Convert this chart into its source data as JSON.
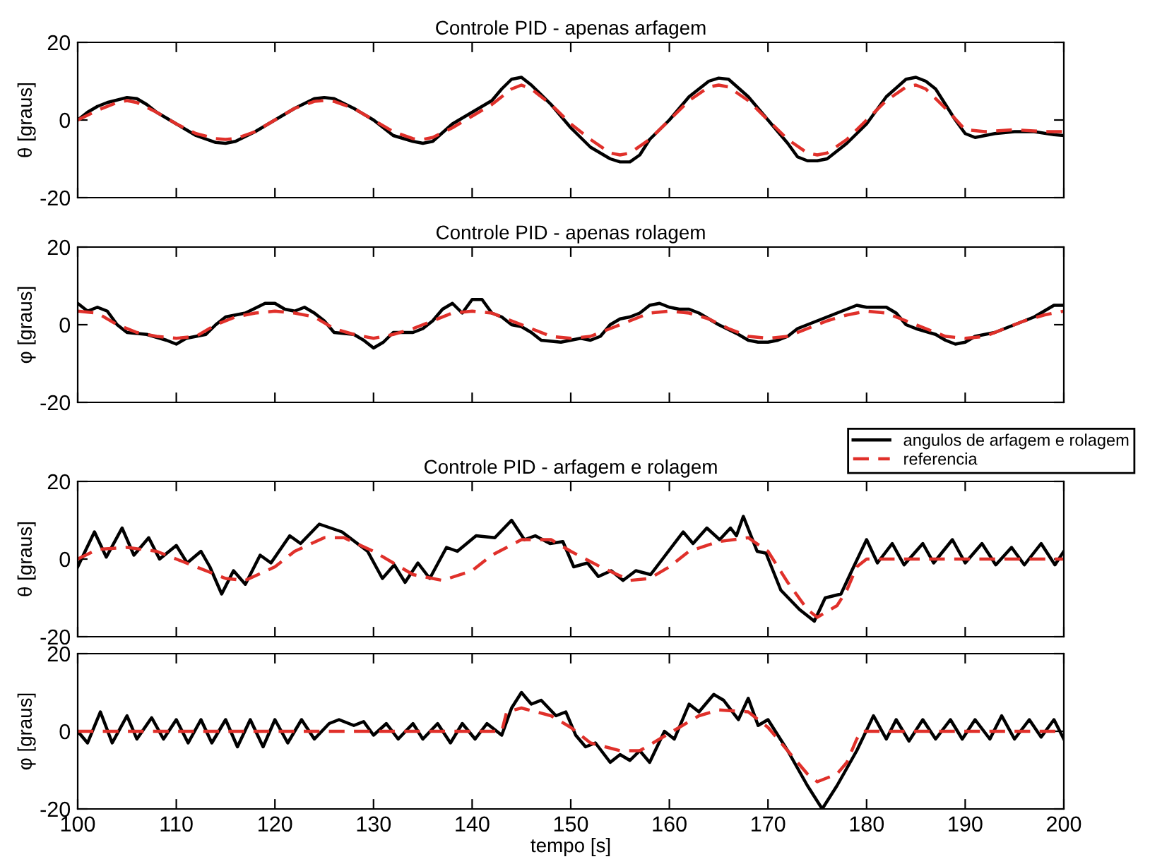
{
  "chart_data": [
    {
      "type": "line",
      "title": "Controle PID - apenas arfagem",
      "ylabel": "θ [graus]",
      "xlim": [
        100,
        200
      ],
      "xticks": [
        100,
        110,
        120,
        130,
        140,
        150,
        160,
        170,
        180,
        190,
        200
      ],
      "ylim": [
        -20,
        20
      ],
      "yticks": [
        -20,
        0,
        20
      ],
      "tick_labels": "y",
      "grid": false,
      "legend": false,
      "series": [
        {
          "color": "#000000",
          "line_style": "solid",
          "x": [
            100,
            101,
            102,
            103,
            105,
            106,
            107,
            108,
            110,
            112,
            114,
            115,
            116,
            118,
            120,
            122,
            124,
            125,
            126,
            128,
            130,
            132,
            134,
            135,
            136,
            138,
            140,
            142,
            143,
            144,
            145,
            146,
            148,
            150,
            152,
            154,
            155,
            156,
            157,
            158,
            160,
            162,
            164,
            165,
            166,
            168,
            170,
            172,
            173,
            174,
            175,
            176,
            178,
            180,
            182,
            184,
            185,
            186,
            187,
            188,
            189,
            190,
            191,
            193,
            195,
            197,
            199,
            200
          ],
          "values": [
            0,
            2,
            3.5,
            4.5,
            5.8,
            5.5,
            4,
            2,
            -1,
            -4,
            -5.8,
            -6,
            -5.5,
            -3,
            0,
            3,
            5.5,
            5.8,
            5.5,
            3,
            0,
            -4,
            -5.5,
            -6,
            -5.5,
            -1,
            2,
            5,
            8,
            10.5,
            11,
            9,
            4,
            -2,
            -7,
            -10,
            -10.8,
            -10.8,
            -9,
            -5,
            0,
            6,
            10,
            10.8,
            10.5,
            6,
            0,
            -6,
            -9.5,
            -10.5,
            -10.5,
            -10,
            -6,
            -1,
            6,
            10.5,
            11,
            10,
            8,
            4,
            0,
            -3.5,
            -4.5,
            -3.5,
            -3,
            -3,
            -3.8,
            -4
          ]
        },
        {
          "color": "#e0302a",
          "line_style": "dashed",
          "x": [
            100,
            102,
            104,
            105,
            106,
            108,
            110,
            112,
            114,
            115,
            116,
            118,
            120,
            122,
            124,
            125,
            126,
            128,
            130,
            132,
            134,
            135,
            136,
            138,
            140,
            142,
            144,
            145,
            146,
            148,
            150,
            152,
            154,
            155,
            156,
            158,
            160,
            162,
            164,
            165,
            166,
            168,
            170,
            172,
            174,
            175,
            176,
            178,
            180,
            182,
            184,
            185,
            186,
            188,
            190,
            192,
            195,
            198,
            200
          ],
          "values": [
            0,
            2.5,
            4.5,
            5,
            4.5,
            2,
            -1,
            -3.5,
            -4.8,
            -5,
            -4.8,
            -3,
            0,
            3,
            4.8,
            5,
            4.8,
            3,
            0,
            -3,
            -4.8,
            -5,
            -4.5,
            -2,
            1,
            4,
            8,
            9,
            8,
            4,
            -1,
            -5,
            -8.5,
            -9,
            -8.5,
            -5,
            0,
            5,
            8.5,
            9,
            8.5,
            5,
            0,
            -5,
            -8.5,
            -9,
            -8.5,
            -5,
            0,
            5,
            8.5,
            9,
            8,
            3,
            -2.5,
            -3,
            -2.5,
            -3,
            -3
          ]
        }
      ]
    },
    {
      "type": "line",
      "title": "Controle PID - apenas rolagem",
      "ylabel": "φ [graus]",
      "xlim": [
        100,
        200
      ],
      "xticks": [
        100,
        110,
        120,
        130,
        140,
        150,
        160,
        170,
        180,
        190,
        200
      ],
      "ylim": [
        -20,
        20
      ],
      "yticks": [
        -20,
        0,
        20
      ],
      "tick_labels": "y",
      "grid": false,
      "legend": false,
      "series": [
        {
          "color": "#000000",
          "line_style": "solid",
          "x": [
            100,
            101,
            102,
            103,
            104,
            105,
            107,
            109,
            110,
            111,
            112,
            113,
            114,
            115,
            117,
            119,
            120,
            121,
            122,
            123,
            124,
            125,
            126,
            128,
            129,
            130,
            131,
            132,
            134,
            135,
            136,
            137,
            138,
            139,
            140,
            141,
            142,
            143,
            144,
            145,
            146,
            147,
            149,
            150,
            151,
            152,
            153,
            154,
            155,
            156,
            157,
            158,
            159,
            160,
            161,
            162,
            163,
            165,
            167,
            168,
            169,
            170,
            171,
            172,
            173,
            175,
            177,
            178,
            179,
            180,
            181,
            182,
            183,
            184,
            185,
            187,
            188,
            189,
            190,
            191,
            193,
            195,
            197,
            199,
            200
          ],
          "values": [
            5.5,
            3.5,
            4.5,
            3.5,
            0,
            -2,
            -2.5,
            -4,
            -5,
            -3.5,
            -3,
            -2.5,
            0,
            2,
            3,
            5.5,
            5.5,
            4,
            3.5,
            4.5,
            3,
            1,
            -2,
            -2.5,
            -4,
            -6,
            -4.5,
            -2,
            -2,
            -1,
            1,
            4,
            5.5,
            3,
            6.5,
            6.5,
            3,
            2,
            0,
            -0.5,
            -2,
            -4,
            -4.5,
            -4,
            -3.5,
            -4,
            -3,
            0,
            1.5,
            2,
            3,
            5,
            5.5,
            4.5,
            4,
            4,
            3,
            0,
            -2.5,
            -4,
            -4.5,
            -4.5,
            -4,
            -3,
            -1,
            1,
            3,
            4,
            5,
            4.5,
            4.5,
            4.5,
            3,
            0,
            -1,
            -2.5,
            -4,
            -5,
            -4.5,
            -3,
            -2,
            0,
            2,
            5,
            5
          ]
        },
        {
          "color": "#e0302a",
          "line_style": "dashed",
          "x": [
            100,
            102,
            104,
            106,
            108,
            110,
            112,
            114,
            116,
            118,
            120,
            122,
            124,
            126,
            128,
            130,
            132,
            134,
            136,
            138,
            140,
            142,
            144,
            146,
            148,
            150,
            152,
            154,
            156,
            158,
            160,
            162,
            164,
            166,
            168,
            170,
            172,
            174,
            176,
            178,
            180,
            182,
            184,
            186,
            188,
            190,
            192,
            194,
            196,
            198,
            200
          ],
          "values": [
            3.5,
            3,
            0,
            -2,
            -3,
            -3.5,
            -3,
            0,
            2,
            3,
            3.5,
            3,
            2,
            -1,
            -2.5,
            -3.5,
            -2.5,
            -1,
            1,
            3,
            3.5,
            3,
            1,
            -1,
            -3,
            -3.5,
            -3,
            -1,
            1,
            3,
            3.5,
            3,
            1.5,
            -1,
            -3,
            -3.5,
            -3,
            -1,
            1,
            2.5,
            3.5,
            3,
            1,
            -1,
            -3,
            -3.5,
            -3,
            -1,
            1,
            2.5,
            3.5
          ]
        }
      ]
    },
    {
      "type": "line",
      "title": "Controle PID - arfagem e rolagem",
      "ylabel": "θ [graus]",
      "xlim": [
        100,
        200
      ],
      "xticks": [
        100,
        110,
        120,
        130,
        140,
        150,
        160,
        170,
        180,
        190,
        200
      ],
      "ylim": [
        -20,
        20
      ],
      "yticks": [
        -20,
        0,
        20
      ],
      "tick_labels": "y",
      "grid": false,
      "legend": "top right",
      "series": [
        {
          "name": "angulos de arfagem e rolagem",
          "color": "#000000",
          "line_style": "solid",
          "x": [
            100,
            101.7,
            102.9,
            104.5,
            105.7,
            107.2,
            108.3,
            110,
            111.1,
            112.5,
            113.4,
            114.6,
            115.8,
            117,
            118.5,
            119.6,
            121.5,
            122.6,
            124.5,
            126.8,
            128.1,
            129.4,
            130.9,
            132.1,
            133.2,
            134.5,
            135.7,
            137.4,
            138.5,
            140.4,
            142.3,
            144,
            145.3,
            146.4,
            147.9,
            149.2,
            150.3,
            151.7,
            152.8,
            154.1,
            155.3,
            156.6,
            158.1,
            159.6,
            161.4,
            162.4,
            163.8,
            165.1,
            166.2,
            166.8,
            167.5,
            168.9,
            169.8,
            171.3,
            173.2,
            174.7,
            175.8,
            177.4,
            178.5,
            180,
            181.1,
            182.6,
            183.8,
            185.7,
            186.8,
            188.7,
            190,
            191.7,
            193.1,
            194.7,
            196,
            197.7,
            199.1,
            200
          ],
          "values": [
            -2,
            7,
            0.5,
            8,
            1,
            5.5,
            0,
            3.5,
            -1,
            2,
            -2,
            -9,
            -3,
            -6.5,
            1,
            -1,
            6,
            4,
            9,
            7,
            4.5,
            2,
            -5,
            -1.5,
            -6,
            -1,
            -5,
            3,
            2,
            6,
            5.5,
            10,
            5,
            6,
            4,
            4.5,
            -2,
            -1,
            -4.5,
            -3,
            -5.5,
            -3,
            -4,
            1,
            7,
            4,
            8,
            5,
            8,
            6,
            11,
            2,
            1.5,
            -8,
            -13,
            -16,
            -10,
            -9,
            -3,
            5,
            -1,
            4,
            -1.5,
            4,
            -1,
            5,
            -1,
            4,
            -1.5,
            3,
            -1.5,
            4,
            -1.5,
            2
          ]
        },
        {
          "name": "referencia",
          "color": "#e0302a",
          "line_style": "dashed",
          "x": [
            100,
            102,
            105,
            108,
            110,
            112,
            115,
            117,
            120,
            122,
            125,
            127,
            130,
            132,
            134,
            137,
            140,
            142,
            145,
            148,
            150,
            153,
            156,
            158,
            160,
            162,
            165,
            168,
            170,
            172,
            174,
            175,
            177,
            178,
            179,
            180,
            200
          ],
          "values": [
            0,
            2.5,
            3,
            2,
            0,
            -2,
            -5,
            -5.5,
            -2,
            2,
            5.5,
            5.5,
            2,
            -1,
            -4,
            -5.5,
            -3,
            1,
            5,
            5,
            2,
            -2,
            -5.5,
            -5,
            -2,
            2,
            4.5,
            5.5,
            2,
            -6,
            -13,
            -15,
            -12,
            -8,
            -2,
            0,
            0
          ]
        }
      ]
    },
    {
      "type": "line",
      "xlabel": "tempo [s]",
      "ylabel": "φ [graus]",
      "xlim": [
        100,
        200
      ],
      "xticks": [
        100,
        110,
        120,
        130,
        140,
        150,
        160,
        170,
        180,
        190,
        200
      ],
      "ylim": [
        -20,
        20
      ],
      "yticks": [
        -20,
        0,
        20
      ],
      "grid": false,
      "legend": false,
      "series": [
        {
          "color": "#000000",
          "line_style": "solid",
          "x": [
            100,
            101,
            102.3,
            103.5,
            105,
            106,
            107.5,
            108.7,
            110,
            111.2,
            112.5,
            113.6,
            115,
            116.2,
            117.5,
            118.8,
            120,
            121.3,
            122.7,
            124,
            125.5,
            126.5,
            128,
            129,
            130,
            131.3,
            132.5,
            134,
            135,
            136.5,
            137.8,
            139,
            140.3,
            141.5,
            143,
            144,
            145,
            146,
            147,
            148.5,
            149.5,
            150.5,
            151.5,
            152.5,
            154,
            155,
            156,
            157,
            158,
            159.5,
            160.5,
            162,
            163,
            164.5,
            165.5,
            167,
            168,
            169,
            170,
            172,
            174,
            175.5,
            177,
            179,
            180.7,
            182,
            183,
            184.3,
            185.7,
            187,
            188.5,
            189.7,
            191,
            192.5,
            193.7,
            195,
            196.5,
            197.7,
            199,
            200
          ],
          "values": [
            0,
            -3,
            5,
            -3,
            4,
            -2,
            3.5,
            -2,
            3,
            -3,
            3,
            -3,
            3,
            -4,
            3,
            -4,
            3,
            -3,
            3,
            -2,
            2,
            3,
            1.5,
            2.5,
            -1,
            2,
            -2,
            2,
            -2,
            2,
            -3,
            2,
            -2,
            2,
            -1,
            6,
            10,
            7,
            8,
            4,
            5,
            -1,
            -4,
            -3,
            -8,
            -6,
            -7.5,
            -5,
            -8,
            0,
            -2,
            7,
            5,
            9.5,
            8,
            3,
            8.5,
            1.5,
            3,
            -5,
            -14,
            -20,
            -14,
            -5,
            4,
            -2,
            3,
            -2.5,
            3,
            -2,
            3,
            -2,
            3,
            -2,
            4,
            -2,
            3,
            -1.5,
            3,
            -2
          ]
        },
        {
          "color": "#e0302a",
          "line_style": "dashed",
          "x": [
            100,
            143,
            143.5,
            145,
            148,
            150,
            152,
            155,
            157,
            159,
            161,
            163,
            165,
            168,
            170,
            172,
            174,
            175,
            177,
            178,
            179,
            179.5,
            200
          ],
          "values": [
            0,
            0,
            5,
            6,
            4,
            1,
            -3,
            -5,
            -5,
            -2,
            1,
            4,
            5.5,
            5,
            1,
            -5,
            -11,
            -13,
            -11,
            -8,
            -2,
            0,
            0
          ]
        }
      ]
    }
  ]
}
